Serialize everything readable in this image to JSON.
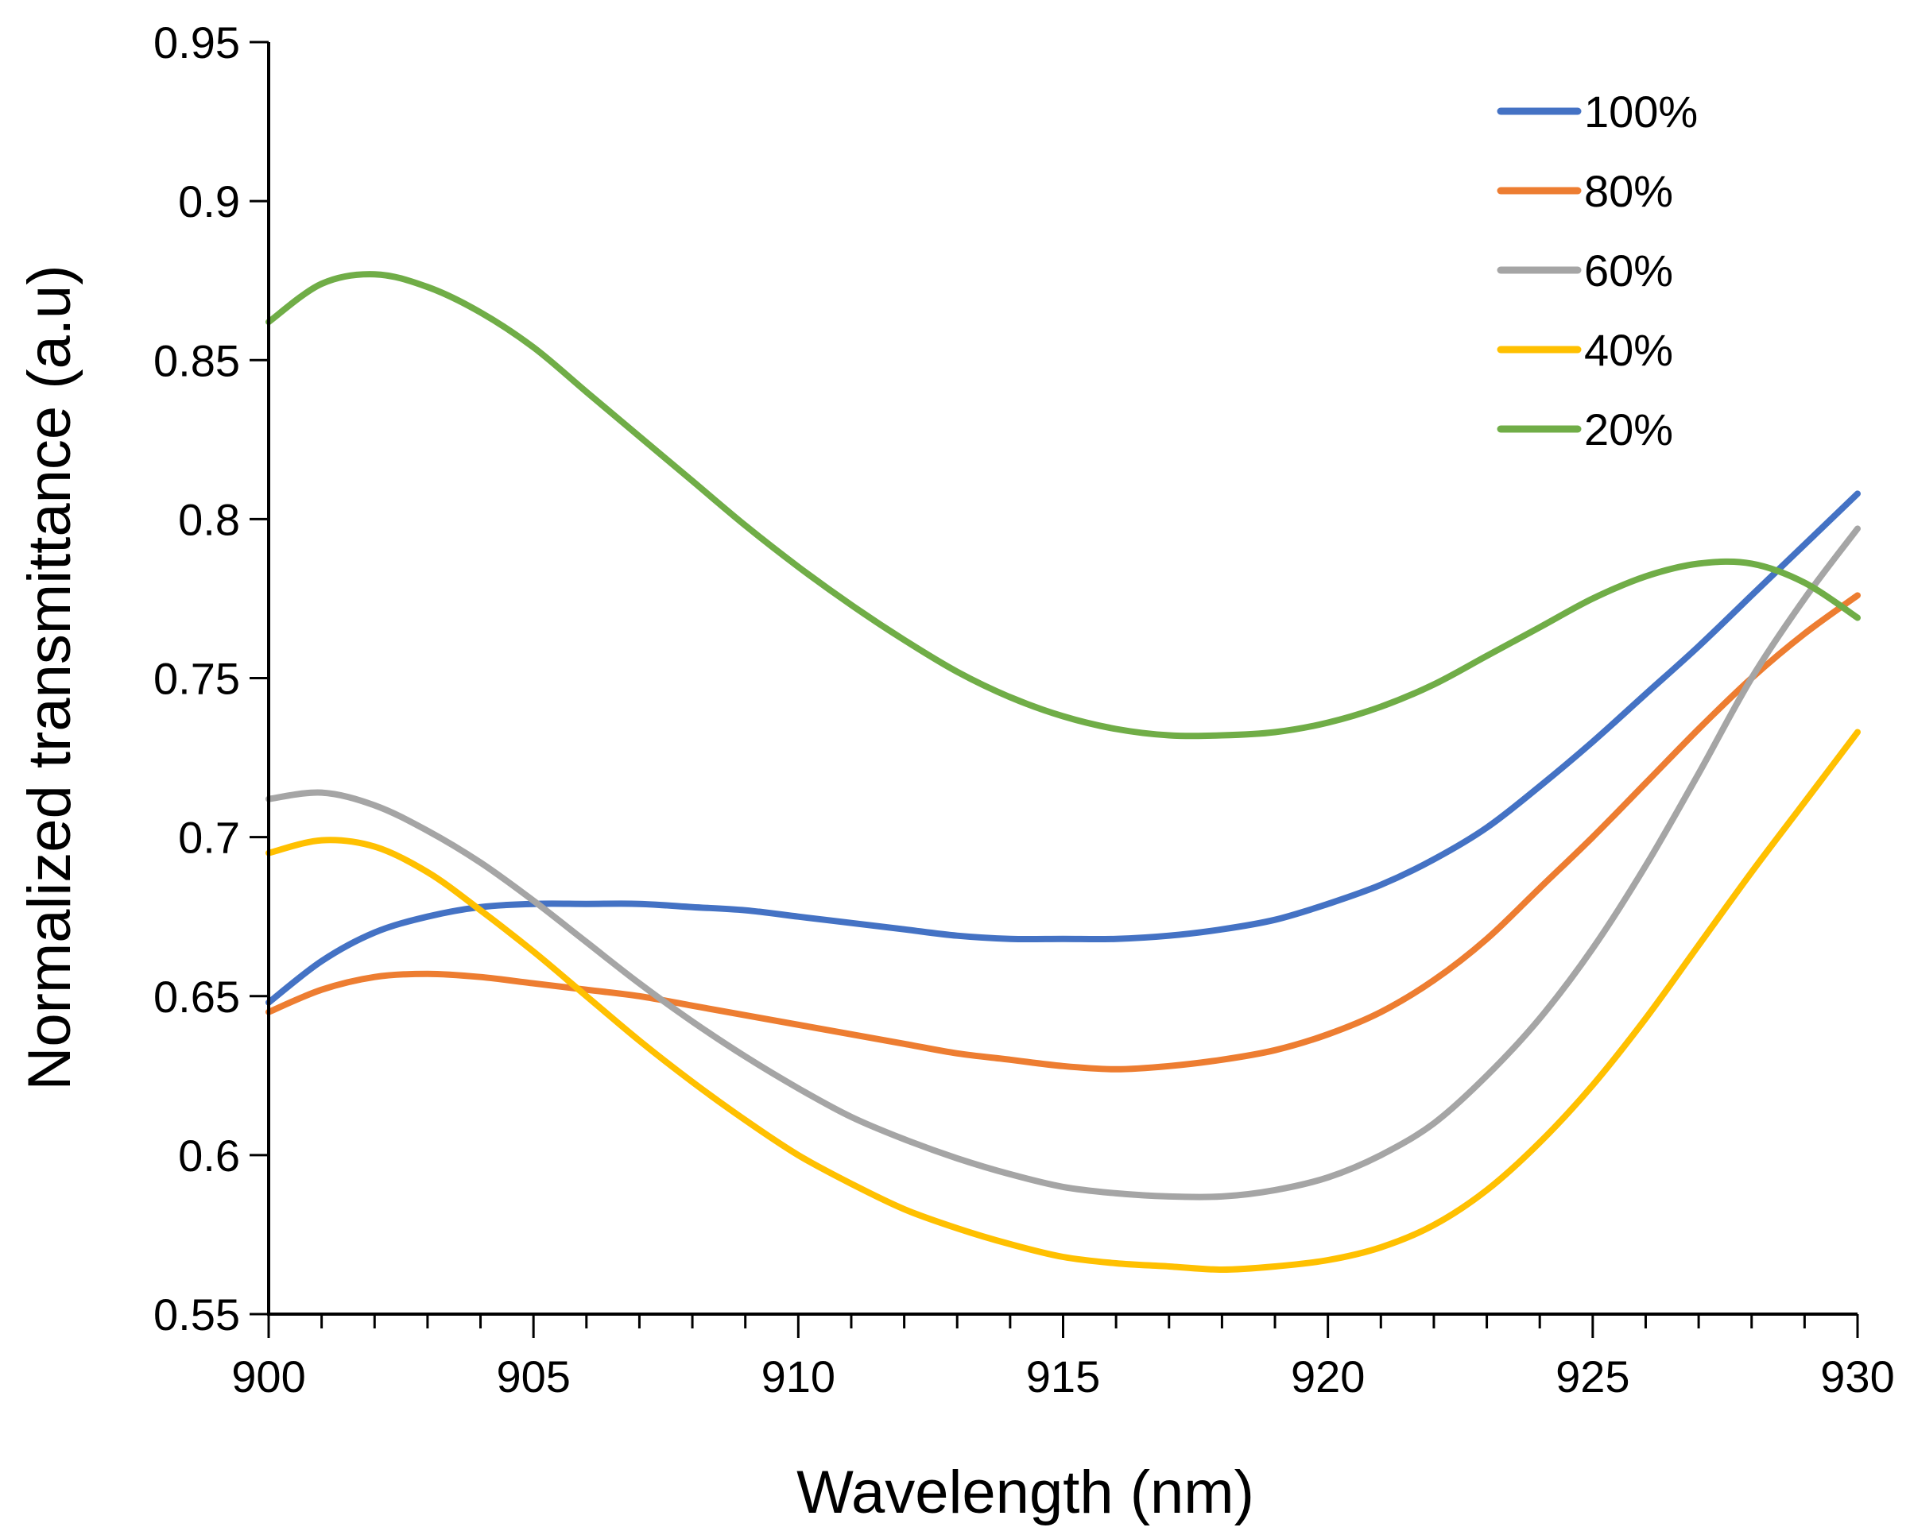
{
  "chart_data": {
    "type": "line",
    "title": "",
    "xlabel": "Wavelength (nm)",
    "ylabel": "Normalized transmittance (a.u)",
    "xlim": [
      900,
      930
    ],
    "ylim": [
      0.55,
      0.95
    ],
    "x_major_ticks": [
      900,
      905,
      910,
      915,
      920,
      925,
      930
    ],
    "x_minor_step": 1,
    "x_tick_labels": [
      "900",
      "905",
      "910",
      "915",
      "920",
      "925",
      "930"
    ],
    "y_major_ticks": [
      0.55,
      0.6,
      0.65,
      0.7,
      0.75,
      0.8,
      0.85,
      0.9,
      0.95
    ],
    "y_tick_labels": [
      "0.55",
      "0.6",
      "0.65",
      "0.7",
      "0.75",
      "0.8",
      "0.85",
      "0.9",
      "0.95"
    ],
    "grid": false,
    "legend_position": "top-right",
    "x": [
      900,
      901,
      902,
      903,
      904,
      905,
      906,
      907,
      908,
      909,
      910,
      911,
      912,
      913,
      914,
      915,
      916,
      917,
      918,
      919,
      920,
      921,
      922,
      923,
      924,
      925,
      926,
      927,
      928,
      929,
      930
    ],
    "series": [
      {
        "name": "100%",
        "color": "#4472C4",
        "values": [
          0.648,
          0.661,
          0.67,
          0.675,
          0.678,
          0.679,
          0.679,
          0.679,
          0.678,
          0.677,
          0.675,
          0.673,
          0.671,
          0.669,
          0.668,
          0.668,
          0.668,
          0.669,
          0.671,
          0.674,
          0.679,
          0.685,
          0.693,
          0.703,
          0.716,
          0.73,
          0.745,
          0.76,
          0.776,
          0.792,
          0.808
        ]
      },
      {
        "name": "80%",
        "color": "#ED7D31",
        "values": [
          0.645,
          0.652,
          0.656,
          0.657,
          0.656,
          0.654,
          0.652,
          0.65,
          0.647,
          0.644,
          0.641,
          0.638,
          0.635,
          0.632,
          0.63,
          0.628,
          0.627,
          0.628,
          0.63,
          0.633,
          0.638,
          0.645,
          0.655,
          0.668,
          0.684,
          0.7,
          0.717,
          0.734,
          0.75,
          0.764,
          0.776
        ]
      },
      {
        "name": "60%",
        "color": "#A5A5A5",
        "values": [
          0.712,
          0.714,
          0.71,
          0.702,
          0.692,
          0.68,
          0.667,
          0.654,
          0.642,
          0.631,
          0.621,
          0.612,
          0.605,
          0.599,
          0.594,
          0.59,
          0.588,
          0.587,
          0.587,
          0.589,
          0.593,
          0.6,
          0.61,
          0.625,
          0.643,
          0.665,
          0.691,
          0.72,
          0.75,
          0.775,
          0.797
        ]
      },
      {
        "name": "40%",
        "color": "#FFC000",
        "values": [
          0.695,
          0.699,
          0.697,
          0.689,
          0.677,
          0.664,
          0.65,
          0.636,
          0.623,
          0.611,
          0.6,
          0.591,
          0.583,
          0.577,
          0.572,
          0.568,
          0.566,
          0.565,
          0.564,
          0.565,
          0.567,
          0.571,
          0.578,
          0.589,
          0.604,
          0.622,
          0.643,
          0.666,
          0.689,
          0.711,
          0.733
        ]
      },
      {
        "name": "20%",
        "color": "#70AD47",
        "values": [
          0.862,
          0.874,
          0.877,
          0.873,
          0.865,
          0.854,
          0.84,
          0.826,
          0.812,
          0.798,
          0.785,
          0.773,
          0.762,
          0.752,
          0.744,
          0.738,
          0.734,
          0.732,
          0.732,
          0.733,
          0.736,
          0.741,
          0.748,
          0.757,
          0.766,
          0.775,
          0.782,
          0.786,
          0.786,
          0.78,
          0.769
        ]
      }
    ]
  }
}
